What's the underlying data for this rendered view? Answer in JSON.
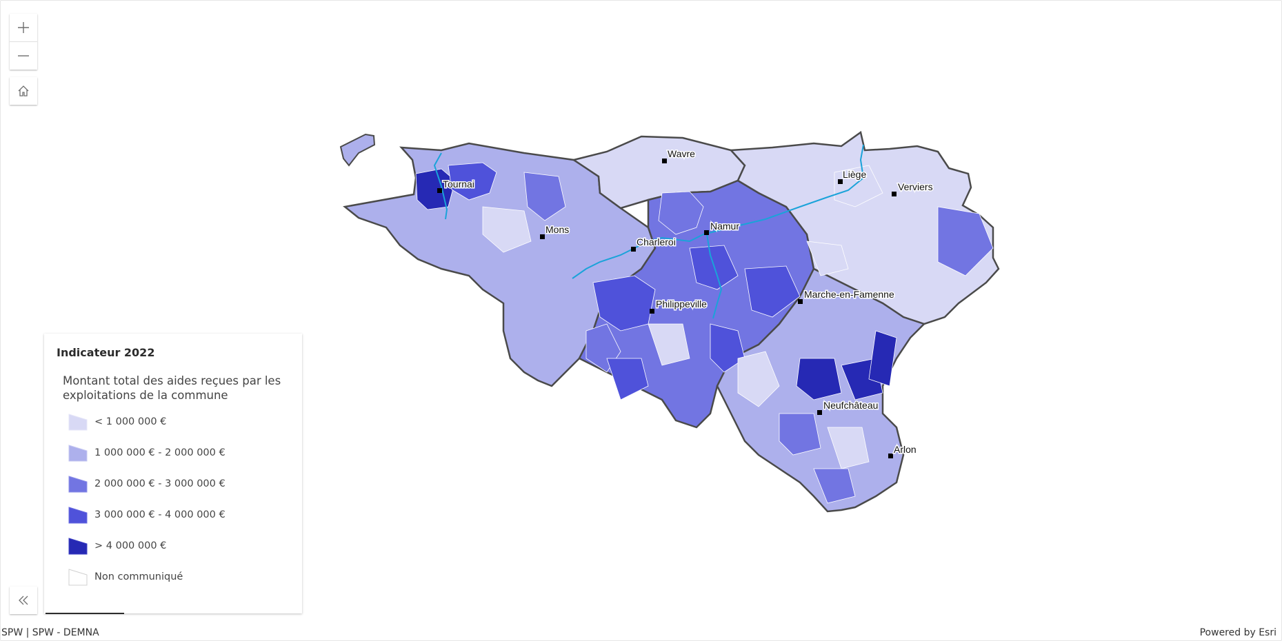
{
  "controls": {
    "zoom_in_icon": "plus-icon",
    "zoom_out_icon": "minus-icon",
    "home_icon": "home-icon",
    "collapse_icon": "double-chevron-left-icon"
  },
  "legend": {
    "title": "Indicateur 2022",
    "subtitle": "Montant total des aides reçues par les exploitations de la commune",
    "classes": [
      {
        "label": "< 1 000 000 €",
        "color": "#d8d9f5"
      },
      {
        "label": "1 000 000 € - 2 000 000 €",
        "color": "#adb0ec"
      },
      {
        "label": "2 000 000 € - 3 000 000 €",
        "color": "#7275e2"
      },
      {
        "label": "3 000 000 € - 4 000 000 €",
        "color": "#4f52da"
      },
      {
        "label": "> 4 000 000 €",
        "color": "#2629b4"
      },
      {
        "label": "Non communiqué",
        "color": "#ffffff"
      }
    ]
  },
  "map": {
    "cities": [
      {
        "name": "Tournai"
      },
      {
        "name": "Wavre"
      },
      {
        "name": "Liège"
      },
      {
        "name": "Verviers"
      },
      {
        "name": "Mons"
      },
      {
        "name": "Charleroi"
      },
      {
        "name": "Namur"
      },
      {
        "name": "Philippeville"
      },
      {
        "name": "Marche-en-Famenne"
      },
      {
        "name": "Neufchâteau"
      },
      {
        "name": "Arlon"
      }
    ],
    "colors": {
      "boundary": "#4a4a4a",
      "river": "#1aa3d9",
      "commune_line": "#ffffff"
    }
  },
  "footer": {
    "attribution": "SPW | SPW - DEMNA",
    "powered_by": "Powered by Esri"
  }
}
